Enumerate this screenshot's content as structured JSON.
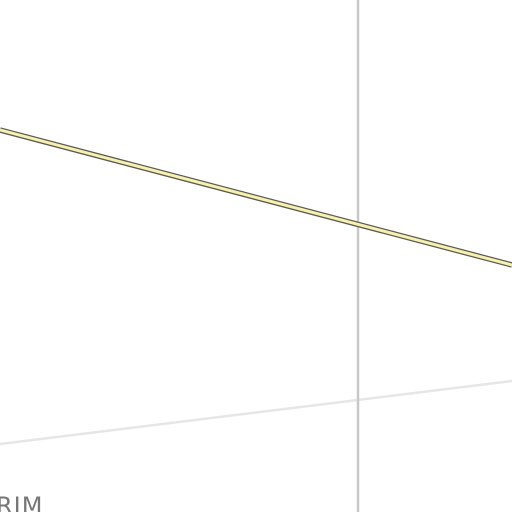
{
  "map": {
    "background_color": "#ffffff",
    "roads": [
      {
        "name": "major-road",
        "fill_color": "#f7f0b0",
        "casing_color": "#5a5a50"
      },
      {
        "name": "vertical-road",
        "color": "#c8c8c8"
      },
      {
        "name": "minor-road",
        "color": "#e6e6e6"
      }
    ],
    "labels": [
      {
        "text": "RIM",
        "color": "#777777"
      }
    ]
  }
}
